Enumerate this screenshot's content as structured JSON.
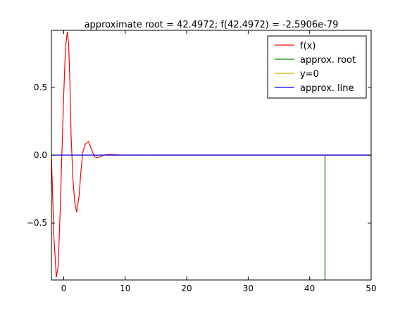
{
  "chart_data": {
    "type": "line",
    "title": "approximate root = 42.4972; f(42.4972) = -2.5906e-79",
    "xlabel": "",
    "ylabel": "",
    "xlim": [
      -2,
      50
    ],
    "ylim": [
      -0.92,
      0.92
    ],
    "xticks": [
      0,
      10,
      20,
      30,
      40,
      50
    ],
    "xtick_labels": [
      "0",
      "10",
      "20",
      "30",
      "40",
      "50"
    ],
    "yticks": [
      0.5,
      0.0,
      -0.5
    ],
    "ytick_labels": [
      "0.5",
      "0.0",
      "−0.5"
    ],
    "grid": false,
    "legend_position": "top-right",
    "series": [
      {
        "name": "f(x)",
        "color": "#ff0000",
        "x": [
          -2.0,
          -1.6,
          -1.2,
          -0.9,
          -0.6,
          -0.3,
          0.0,
          0.3,
          0.6,
          0.8,
          1.0,
          1.2,
          1.5,
          1.8,
          2.1,
          2.5,
          2.8,
          3.1,
          3.5,
          4.0,
          4.4,
          4.7,
          5.1,
          5.5,
          6.0,
          6.5,
          7.0,
          7.5,
          8.0,
          9.0,
          10.0,
          12.0,
          15.0,
          20.0,
          30.0,
          40.0,
          50.0
        ],
        "y": [
          0.0,
          -0.6,
          -0.9,
          -0.82,
          -0.45,
          0.0,
          0.45,
          0.8,
          0.91,
          0.82,
          0.55,
          0.15,
          -0.18,
          -0.35,
          -0.42,
          -0.3,
          -0.12,
          0.02,
          0.08,
          0.1,
          0.06,
          0.02,
          -0.015,
          -0.02,
          -0.01,
          0.0,
          0.004,
          0.005,
          0.004,
          0.002,
          0.001,
          0.0003,
          0.0,
          0.0,
          0.0,
          0.0,
          0.0
        ]
      },
      {
        "name": "approx. root",
        "color": "#008000",
        "x": [
          42.4972,
          42.4972
        ],
        "y": [
          -0.92,
          0.0
        ]
      },
      {
        "name": "y=0",
        "color": "#ccaa00",
        "x": [
          -2,
          50
        ],
        "y": [
          0.0,
          0.0
        ]
      },
      {
        "name": "approx. line",
        "color": "#0000ff",
        "x": [
          -2,
          50
        ],
        "y": [
          0.0,
          0.0
        ]
      }
    ]
  }
}
